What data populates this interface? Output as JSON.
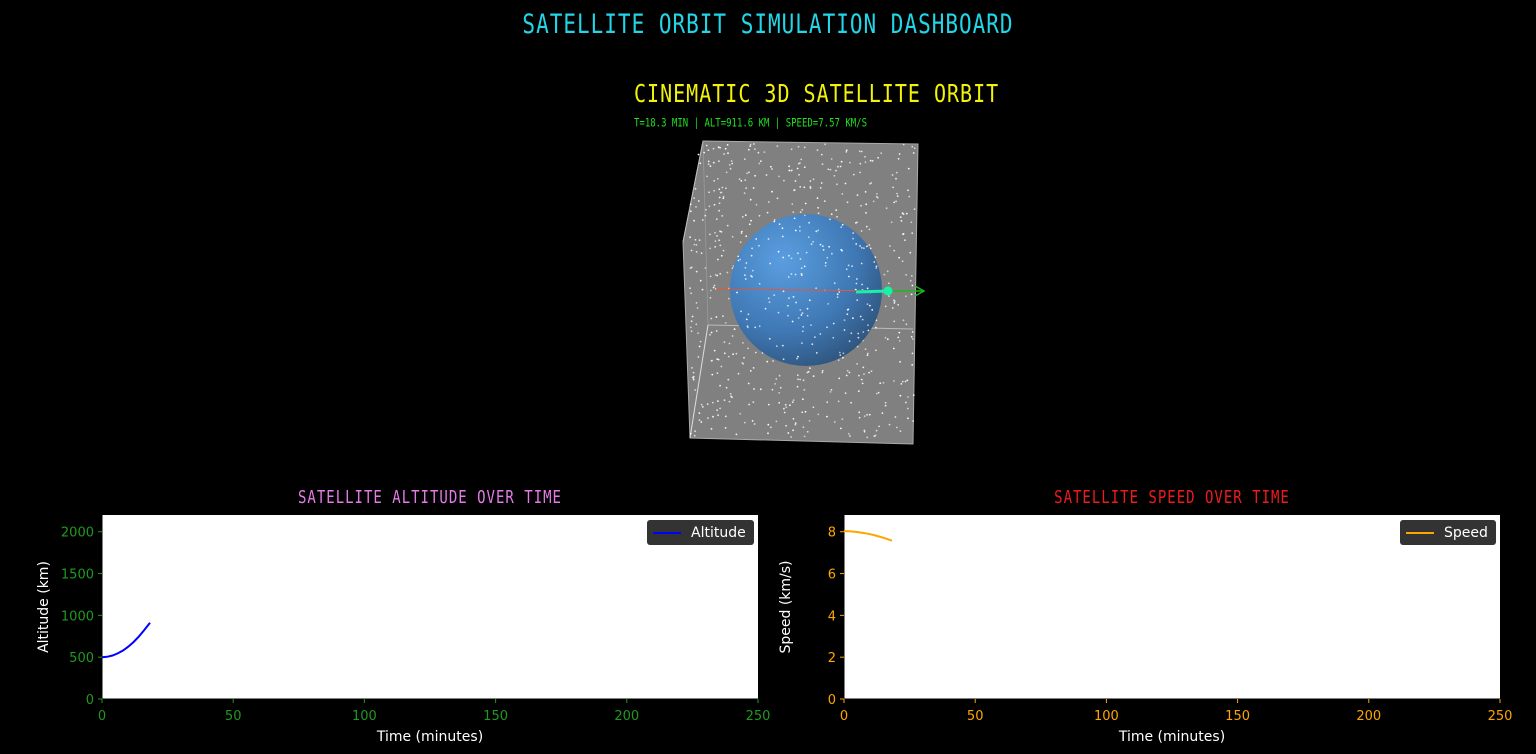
{
  "dashboard": {
    "title": "Satellite Orbit Simulation Dashboard"
  },
  "orbit_view": {
    "title": "Cinematic 3D Satellite Orbit",
    "status": "t=18.3 min | Alt=911.6 km | Speed=7.57 km/s",
    "colors": {
      "earth": "#4a88c8",
      "satellite": "#19f0a8",
      "velocity_arrow": "#1cb81c",
      "radius_line": "#e0583c",
      "stars": "#ffffff",
      "panel": "#808080"
    }
  },
  "chart_data": [
    {
      "type": "line",
      "title": "Satellite Altitude Over Time",
      "title_color": "#e57be6",
      "xlabel": "Time (minutes)",
      "ylabel": "Altitude (km)",
      "xlim": [
        0,
        250
      ],
      "ylim": [
        0,
        2200
      ],
      "xticks": [
        0,
        50,
        100,
        150,
        200,
        250
      ],
      "yticks": [
        0,
        500,
        1000,
        1500,
        2000
      ],
      "tick_color": "#1f9a1f",
      "grid": false,
      "legend_position": "top-right",
      "series": [
        {
          "name": "Altitude",
          "color": "#0000ff",
          "x": [
            0,
            2,
            4,
            6,
            8,
            10,
            12,
            14,
            16,
            18.3
          ],
          "y": [
            500,
            505,
            520,
            545,
            580,
            625,
            680,
            745,
            820,
            911.6
          ]
        }
      ]
    },
    {
      "type": "line",
      "title": "Satellite Speed Over Time",
      "title_color": "#ee1b1b",
      "xlabel": "Time (minutes)",
      "ylabel": "Speed (km/s)",
      "xlim": [
        0,
        250
      ],
      "ylim": [
        0,
        8.8
      ],
      "xticks": [
        0,
        50,
        100,
        150,
        200,
        250
      ],
      "yticks": [
        0,
        2,
        4,
        6,
        8
      ],
      "tick_color": "#ffa500",
      "grid": false,
      "legend_position": "top-right",
      "series": [
        {
          "name": "Speed",
          "color": "#ffa500",
          "x": [
            0,
            2,
            4,
            6,
            8,
            10,
            12,
            14,
            16,
            18.3
          ],
          "y": [
            8.03,
            8.02,
            8.0,
            7.97,
            7.93,
            7.88,
            7.82,
            7.75,
            7.67,
            7.57
          ]
        }
      ]
    }
  ]
}
